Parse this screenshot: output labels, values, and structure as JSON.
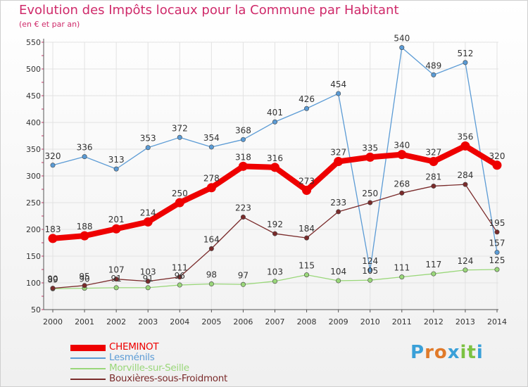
{
  "title": "Evolution des Impôts locaux pour la Commune par Habitant",
  "subtitle": "(en € et par an)",
  "brand": {
    "letters": [
      "P",
      "r",
      "o",
      "x",
      "i",
      "t",
      "i"
    ],
    "colors": [
      "#3aa0d8",
      "#e07a2a",
      "#e07a2a",
      "#3aa0d8",
      "#7cc242",
      "#7cc242",
      "#3aa0d8"
    ]
  },
  "chart_data": {
    "type": "line",
    "x": [
      "2000",
      "2001",
      "2002",
      "2003",
      "2004",
      "2005",
      "2006",
      "2007",
      "2008",
      "2009",
      "2010",
      "2011",
      "2012",
      "2013",
      "2014"
    ],
    "ylim": [
      50,
      550
    ],
    "yticks": [
      "50",
      "100",
      "150",
      "200",
      "250",
      "300",
      "350",
      "400",
      "450",
      "500",
      "550"
    ],
    "grid": true,
    "legend_position": "bottom-left",
    "series": [
      {
        "name": "Lesménils",
        "color": "#5b9bd5",
        "values": [
          320,
          336,
          313,
          353,
          372,
          354,
          368,
          401,
          426,
          454,
          124,
          540,
          489,
          512,
          157
        ],
        "labels": [
          "320",
          "336",
          "313",
          "353",
          "372",
          "354",
          "368",
          "401",
          "426",
          "454",
          "124",
          "540",
          "489",
          "512",
          "157"
        ]
      },
      {
        "name": "Morville-sur-Seille",
        "color": "#9ad77a",
        "values": [
          89,
          90,
          91,
          91,
          96,
          98,
          97,
          103,
          115,
          104,
          105,
          111,
          117,
          124,
          125
        ],
        "labels": [
          "89",
          "90",
          "91",
          "91",
          "96",
          "98",
          "97",
          "103",
          "115",
          "104",
          "105",
          "111",
          "117",
          "124",
          "125"
        ]
      },
      {
        "name": "Bouxières-sous-Froidmont",
        "color": "#7a2b2b",
        "values": [
          90,
          95,
          107,
          103,
          111,
          164,
          223,
          192,
          184,
          233,
          250,
          268,
          281,
          284,
          195
        ],
        "labels": [
          "90",
          "95",
          "107",
          "103",
          "111",
          "164",
          "223",
          "192",
          "184",
          "233",
          "250",
          "268",
          "281",
          "284",
          "195"
        ]
      },
      {
        "name": "CHEMINOT",
        "color": "#ee0000",
        "values": [
          183,
          188,
          201,
          214,
          250,
          278,
          318,
          316,
          273,
          327,
          335,
          340,
          327,
          356,
          320
        ],
        "labels": [
          "183",
          "188",
          "201",
          "214",
          "250",
          "278",
          "318",
          "316",
          "273",
          "327",
          "335",
          "340",
          "327",
          "356",
          "320"
        ]
      }
    ],
    "legend": [
      {
        "name": "CHEMINOT",
        "color": "#ee0000"
      },
      {
        "name": "Lesménils",
        "color": "#5b9bd5"
      },
      {
        "name": "Morville-sur-Seille",
        "color": "#9ad77a"
      },
      {
        "name": "Bouxières-sous-Froidmont",
        "color": "#7a2b2b"
      }
    ]
  }
}
